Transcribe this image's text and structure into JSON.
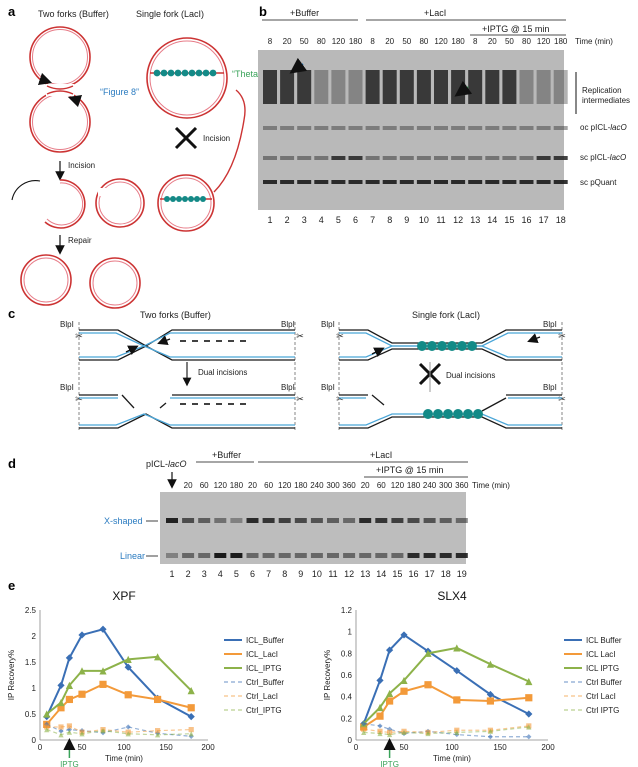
{
  "panel_a": {
    "label": "a",
    "title_left": "Two forks (Buffer)",
    "title_right": "Single fork (LacI)",
    "figure8": "“Figure 8”",
    "theta": "“Theta”",
    "incision": "Incision",
    "incision_x": "Incision",
    "repair": "Repair"
  },
  "panel_b": {
    "label": "b",
    "buffer": "+Buffer",
    "laci": "+LacI",
    "iptg": "+IPTG @ 15 min",
    "time_label": "Time (min)",
    "times_buffer": [
      "8",
      "20",
      "50",
      "80",
      "120",
      "180"
    ],
    "times_laci": [
      "8",
      "20",
      "50",
      "80",
      "120",
      "180"
    ],
    "times_iptg": [
      "8",
      "20",
      "50",
      "80",
      "120",
      "180"
    ],
    "lanes": [
      "1",
      "2",
      "3",
      "4",
      "5",
      "6",
      "7",
      "8",
      "9",
      "10",
      "11",
      "12",
      "13",
      "14",
      "15",
      "16",
      "17",
      "18"
    ],
    "right_labels": {
      "rep1": "Replication",
      "rep2": "intermediates",
      "oc": "oc pICL-",
      "sc": "sc pICL-",
      "lac_italic": "lacO",
      "pquant": "sc pQuant"
    }
  },
  "panel_c": {
    "label": "c",
    "title_left": "Two forks (Buffer)",
    "title_right": "Single fork (LacI)",
    "blpi": "BlpI",
    "dual_incisions": "Dual incisions",
    "dual_incisions_x": "Dual incisions"
  },
  "panel_d": {
    "label": "d",
    "picl": "pICL-",
    "lac_italic": "lacO",
    "buffer": "+Buffer",
    "laci": "+LacI",
    "iptg": "+IPTG @ 15 min",
    "time_label": "Time (min)",
    "times_buffer": [
      "20",
      "60",
      "120",
      "180"
    ],
    "times_laci": [
      "20",
      "60",
      "120",
      "180",
      "240",
      "300",
      "360"
    ],
    "times_iptg": [
      "20",
      "60",
      "120",
      "180",
      "240",
      "300",
      "360"
    ],
    "lanes": [
      "1",
      "2",
      "3",
      "4",
      "5",
      "6",
      "7",
      "8",
      "9",
      "10",
      "11",
      "12",
      "13",
      "14",
      "15",
      "16",
      "17",
      "18",
      "19"
    ],
    "xshaped": "X-shaped",
    "linear": "Linear"
  },
  "panel_e": {
    "label": "e",
    "iptg_marker": "IPTG"
  },
  "colors": {
    "buffer": "#3a6fb5",
    "laci": "#f39a3a",
    "iptg": "#8db24a",
    "blue_text": "#2a7bc0",
    "green_text": "#3aa35a",
    "teal_bead": "#138a87",
    "dna_red": "#d0302f",
    "dna_blue": "#4ba6d8"
  },
  "chart_data": [
    {
      "type": "line",
      "title": "XPF",
      "xlabel": "Time (min)",
      "ylabel": "IP Recovery%",
      "xlim": [
        0,
        200
      ],
      "ylim": [
        0,
        2.5
      ],
      "xticks": [
        "0",
        "50",
        "100",
        "150",
        "200"
      ],
      "yticks": [
        "0",
        "0.5",
        "1",
        "1.5",
        "2",
        "2.5"
      ],
      "legend_position": "right",
      "series": [
        {
          "name": "ICL_Buffer",
          "style": "solid",
          "marker": "diamond",
          "color": "#3a6fb5",
          "x": [
            8,
            25,
            35,
            50,
            75,
            105,
            140,
            180
          ],
          "y": [
            0.45,
            1.05,
            1.58,
            2.02,
            2.13,
            1.4,
            0.8,
            0.45
          ]
        },
        {
          "name": "ICL_LacI",
          "style": "solid",
          "marker": "square",
          "color": "#f39a3a",
          "x": [
            8,
            25,
            35,
            50,
            75,
            105,
            140,
            180
          ],
          "y": [
            0.3,
            0.62,
            0.78,
            0.88,
            1.07,
            0.87,
            0.78,
            0.62
          ]
        },
        {
          "name": "ICL_IPTG",
          "style": "solid",
          "marker": "triangle",
          "color": "#8db24a",
          "x": [
            8,
            25,
            35,
            50,
            75,
            105,
            140,
            180
          ],
          "y": [
            0.5,
            0.72,
            1.05,
            1.33,
            1.33,
            1.55,
            1.6,
            0.95
          ]
        },
        {
          "name": "Ctrl_Buffer",
          "style": "dashed",
          "marker": "diamond",
          "color": "#3a6fb5",
          "x": [
            8,
            25,
            35,
            50,
            75,
            105,
            140,
            180
          ],
          "y": [
            0.3,
            0.17,
            0.2,
            0.18,
            0.14,
            0.25,
            0.13,
            0.07
          ]
        },
        {
          "name": "Ctrl_LacI",
          "style": "dashed",
          "marker": "square",
          "color": "#f39a3a",
          "x": [
            8,
            25,
            35,
            50,
            75,
            105,
            140,
            180
          ],
          "y": [
            0.25,
            0.25,
            0.27,
            0.15,
            0.2,
            0.15,
            0.18,
            0.2
          ]
        },
        {
          "name": "Ctrl_IPTG",
          "style": "dashed",
          "marker": "triangle",
          "color": "#8db24a",
          "x": [
            8,
            25,
            35,
            50,
            75,
            105,
            140,
            180
          ],
          "y": [
            0.2,
            0.1,
            0.15,
            0.12,
            0.18,
            0.12,
            0.1,
            0.12
          ]
        }
      ],
      "annotation": {
        "text": "IPTG",
        "x": 35
      }
    },
    {
      "type": "line",
      "title": "SLX4",
      "xlabel": "Time (min)",
      "ylabel": "IP Recovery%",
      "xlim": [
        0,
        200
      ],
      "ylim": [
        0,
        1.2
      ],
      "xticks": [
        "0",
        "50",
        "100",
        "150",
        "200"
      ],
      "yticks": [
        "0",
        "0.2",
        "0.4",
        "0.6",
        "0.8",
        "1",
        "1.2"
      ],
      "legend_position": "right",
      "series": [
        {
          "name": "ICL Buffer",
          "style": "solid",
          "marker": "diamond",
          "color": "#3a6fb5",
          "x": [
            8,
            25,
            35,
            50,
            75,
            105,
            140,
            180
          ],
          "y": [
            0.15,
            0.55,
            0.83,
            0.97,
            0.82,
            0.64,
            0.42,
            0.24
          ]
        },
        {
          "name": "ICL LacI",
          "style": "solid",
          "marker": "square",
          "color": "#f39a3a",
          "x": [
            8,
            25,
            35,
            50,
            75,
            105,
            140,
            180
          ],
          "y": [
            0.12,
            0.22,
            0.36,
            0.45,
            0.51,
            0.37,
            0.36,
            0.39
          ]
        },
        {
          "name": "ICL IPTG",
          "style": "solid",
          "marker": "triangle",
          "color": "#8db24a",
          "x": [
            8,
            25,
            35,
            50,
            75,
            105,
            140,
            180
          ],
          "y": [
            0.15,
            0.3,
            0.43,
            0.55,
            0.8,
            0.85,
            0.7,
            0.54
          ]
        },
        {
          "name": "Ctrl Buffer",
          "style": "dashed",
          "marker": "diamond",
          "color": "#3a6fb5",
          "x": [
            8,
            25,
            35,
            50,
            75,
            105,
            140,
            180
          ],
          "y": [
            0.15,
            0.13,
            0.1,
            0.06,
            0.08,
            0.05,
            0.03,
            0.03
          ]
        },
        {
          "name": "Ctrl LacI",
          "style": "dashed",
          "marker": "square",
          "color": "#f39a3a",
          "x": [
            8,
            25,
            35,
            50,
            75,
            105,
            140,
            180
          ],
          "y": [
            0.1,
            0.08,
            0.07,
            0.08,
            0.07,
            0.09,
            0.09,
            0.13
          ]
        },
        {
          "name": "Ctrl IPTG",
          "style": "dashed",
          "marker": "triangle",
          "color": "#8db24a",
          "x": [
            8,
            25,
            35,
            50,
            75,
            105,
            140,
            180
          ],
          "y": [
            0.07,
            0.06,
            0.05,
            0.07,
            0.06,
            0.07,
            0.08,
            0.12
          ]
        }
      ],
      "annotation": {
        "text": "IPTG",
        "x": 35
      }
    }
  ]
}
